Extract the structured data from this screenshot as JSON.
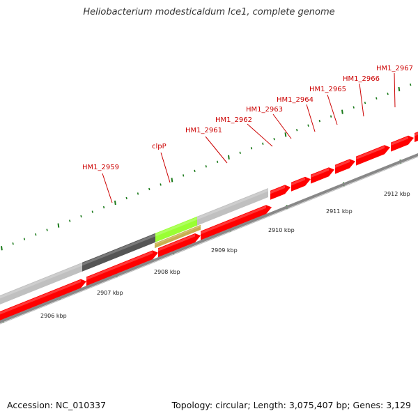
{
  "title": "Heliobacterium modesticaldum Ice1, complete genome",
  "footer": {
    "accession": "Accession: NC_010337",
    "topology": "Topology: circular",
    "length": "Length: 3,075,407 bp",
    "genes": "Genes: 3,129"
  },
  "colors": {
    "cds": "#ff0000",
    "cds_light": "#ff5050",
    "cds_dark": "#b20000",
    "label": "#cc0000",
    "backbone": "#888888",
    "tick": "#1a7a1a",
    "gray_light": "#c0c0c0",
    "gray_dark": "#555555",
    "green": "#99ff33",
    "olive": "#c8b050"
  },
  "gene_labels": [
    "HM1_2959",
    "clpP",
    "HM1_2961",
    "HM1_2962",
    "HM1_2963",
    "HM1_2964",
    "HM1_2965",
    "HM1_2966",
    "HM1_2967"
  ],
  "kbp_labels": [
    "2906 kbp",
    "2907 kbp",
    "2908 kbp",
    "2909 kbp",
    "2910 kbp",
    "2911 kbp",
    "2912 kbp"
  ]
}
